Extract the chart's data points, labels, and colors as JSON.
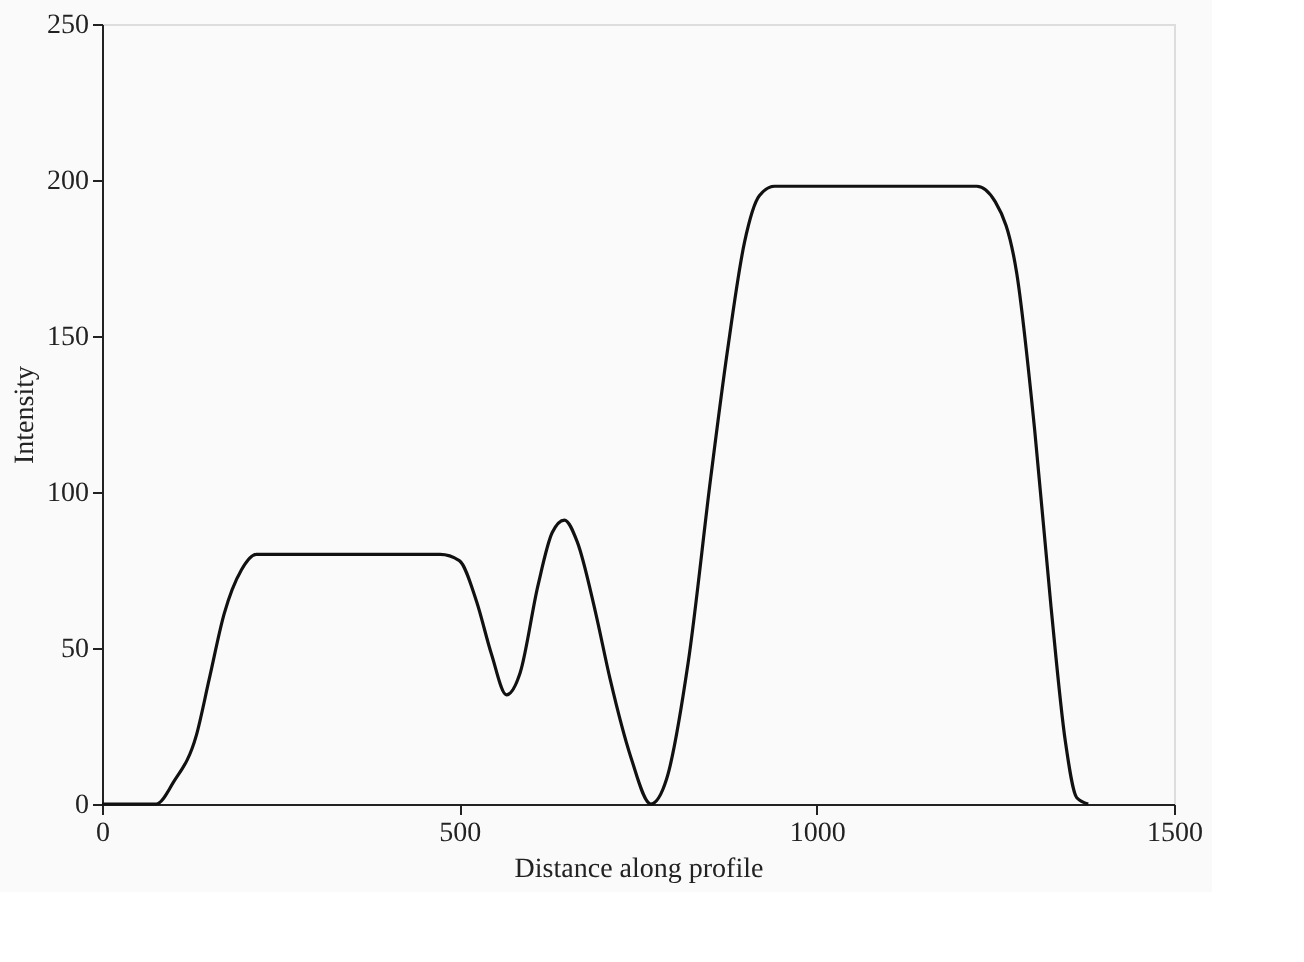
{
  "chart_data": {
    "type": "line",
    "xlabel": "Distance along profile",
    "ylabel": "Intensity",
    "xlim": [
      0,
      1500
    ],
    "xticks": [
      0,
      500,
      1000,
      1500
    ],
    "ylim": [
      0,
      250
    ],
    "yticks": [
      0,
      50,
      100,
      150,
      200,
      250
    ],
    "grid": false,
    "series": [
      {
        "color": "#111111",
        "x": [
          0,
          76,
          100,
          132,
          150,
          171,
          195,
          216,
          260,
          350,
          430,
          473,
          500,
          524,
          545,
          566,
          585,
          610,
          630,
          647,
          665,
          690,
          711,
          740,
          768,
          790,
          820,
          852,
          875,
          899,
          920,
          941,
          1000,
          1100,
          1200,
          1224,
          1250,
          1280,
          1305,
          1328,
          1348,
          1364,
          1380
        ],
        "values": [
          0,
          0,
          7,
          22,
          40,
          61,
          75,
          80,
          80,
          80,
          80,
          80,
          78,
          65,
          48,
          35,
          42,
          70,
          87,
          91,
          84,
          62,
          40,
          15,
          0,
          8,
          45,
          105,
          145,
          180,
          195,
          198,
          198,
          198,
          198,
          198,
          193,
          170,
          120,
          63,
          20,
          2,
          0
        ]
      }
    ]
  }
}
